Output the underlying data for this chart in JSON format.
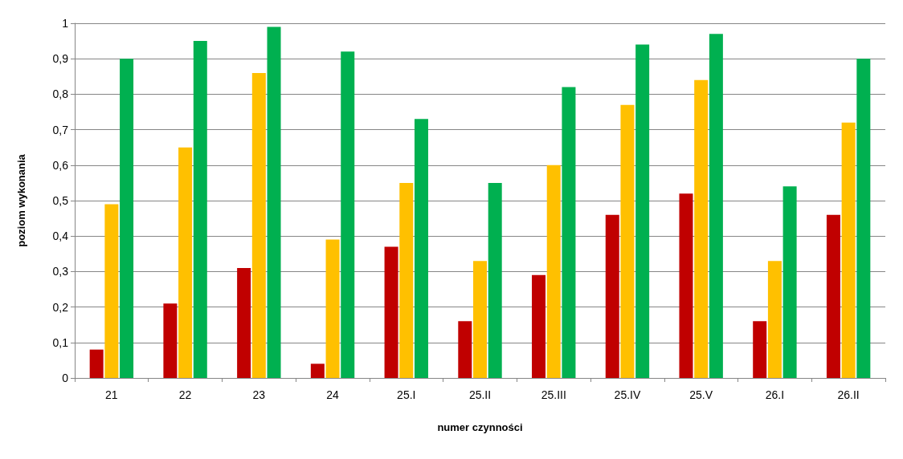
{
  "chart_data": {
    "type": "bar",
    "xlabel": "numer czynności",
    "ylabel": "poziom wykonania",
    "categories": [
      "21",
      "22",
      "23",
      "24",
      "25.I",
      "25.II",
      "25.III",
      "25.IV",
      "25.V",
      "26.I",
      "26.II"
    ],
    "series": [
      {
        "color": "#c00000",
        "values": [
          0.08,
          0.21,
          0.31,
          0.04,
          0.37,
          0.16,
          0.29,
          0.46,
          0.52,
          0.16,
          0.46
        ]
      },
      {
        "color": "#ffc000",
        "values": [
          0.49,
          0.65,
          0.86,
          0.39,
          0.55,
          0.33,
          0.6,
          0.77,
          0.84,
          0.33,
          0.72
        ]
      },
      {
        "color": "#00b050",
        "values": [
          0.9,
          0.95,
          0.99,
          0.92,
          0.73,
          0.55,
          0.82,
          0.94,
          0.97,
          0.54,
          0.9
        ]
      }
    ],
    "ylim": [
      0,
      1
    ],
    "yticks": [
      0,
      {
        "value": 0.1,
        "label": "0,1"
      },
      {
        "value": 0.2,
        "label": "0,2"
      },
      {
        "value": 0.3,
        "label": "0,3"
      },
      {
        "value": 0.4,
        "label": "0,4"
      },
      {
        "value": 0.5,
        "label": "0,5"
      },
      {
        "value": 0.6,
        "label": "0,6"
      },
      {
        "value": 0.7,
        "label": "0,7"
      },
      {
        "value": 0.8,
        "label": "0,8"
      },
      {
        "value": 0.9,
        "label": "0,9"
      },
      1
    ],
    "grid": "y"
  }
}
